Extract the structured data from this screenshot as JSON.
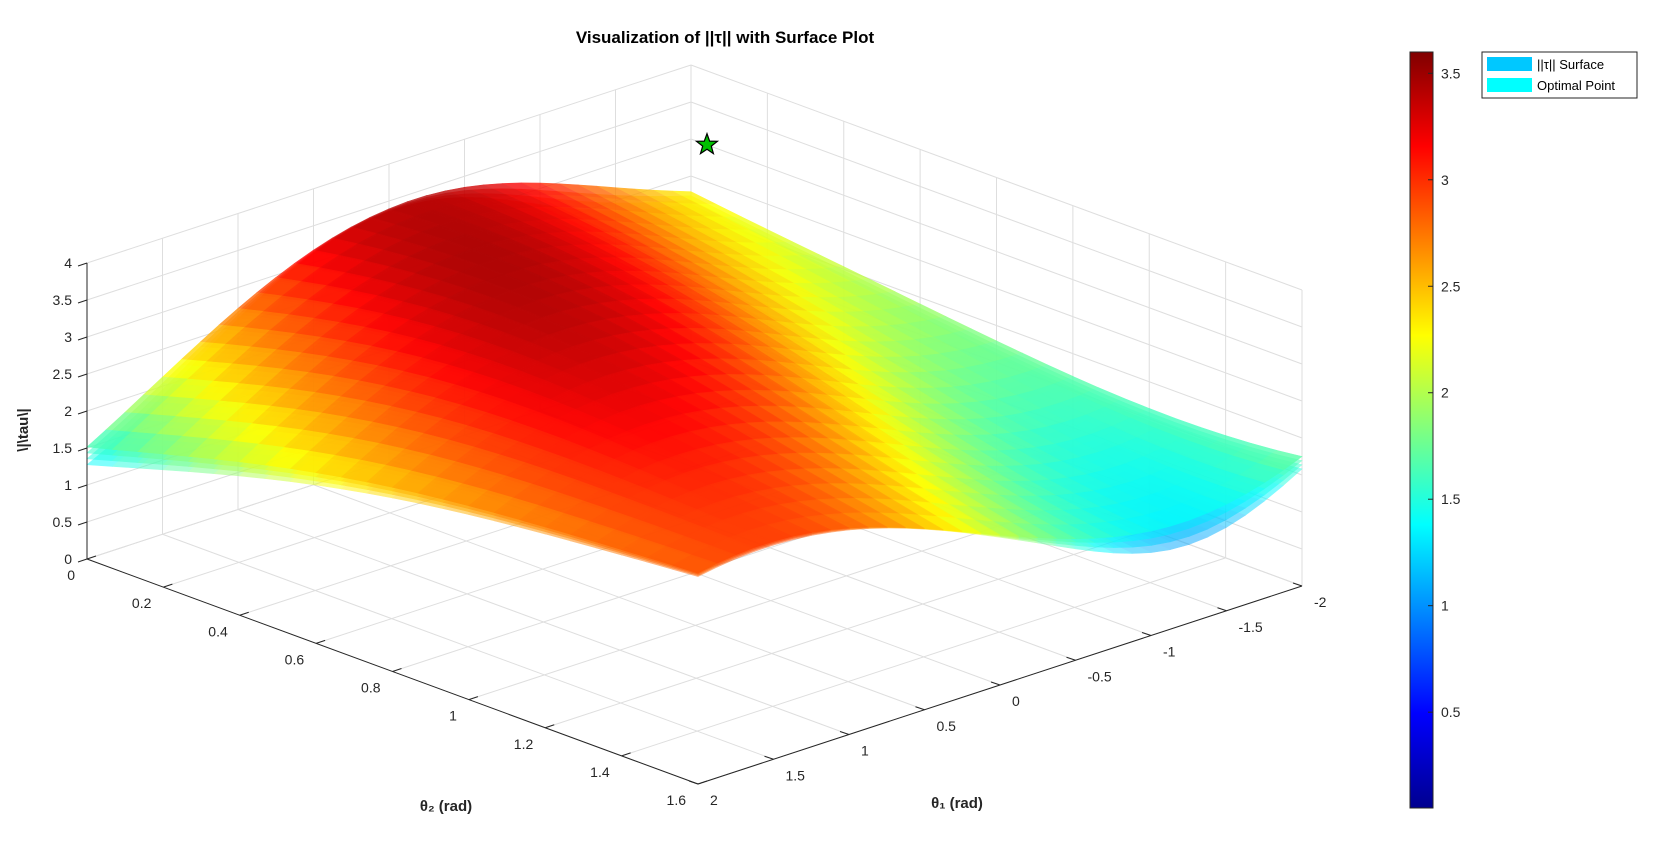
{
  "chart_data": {
    "type": "surface",
    "title": "Visualization of ||τ|| with Surface Plot",
    "xlabel": "θ₂ (rad)",
    "ylabel": "θ₁ (rad)",
    "zlabel": "\\|\\tau\\|",
    "xlim": [
      0,
      1.6
    ],
    "ylim": [
      2,
      -2
    ],
    "zlim": [
      0,
      4
    ],
    "x_ticks": [
      "0",
      "0.2",
      "0.4",
      "0.6",
      "0.8",
      "1",
      "1.2",
      "1.4",
      "1.6"
    ],
    "y_ticks": [
      "2",
      "1.5",
      "1",
      "0.5",
      "0",
      "-0.5",
      "-1",
      "-1.5",
      "-2"
    ],
    "z_ticks": [
      "0",
      "0.5",
      "1",
      "1.5",
      "2",
      "2.5",
      "3",
      "3.5",
      "4"
    ],
    "colorbar": {
      "colormap": "jet",
      "range": [
        0.05,
        3.6
      ],
      "ticks": [
        "0.5",
        "1",
        "1.5",
        "2",
        "2.5",
        "3",
        "3.5"
      ]
    },
    "legend": {
      "position": "top-right",
      "entries": [
        {
          "label": "||τ|| Surface",
          "color": "#00c8ff"
        },
        {
          "label": "Optimal Point",
          "color": "#00ffff"
        }
      ]
    },
    "optimal_point": {
      "theta2": 0.2,
      "theta1": -1.6,
      "tau": 3.57,
      "marker": "star",
      "color": "#00c000"
    },
    "grid": true
  }
}
